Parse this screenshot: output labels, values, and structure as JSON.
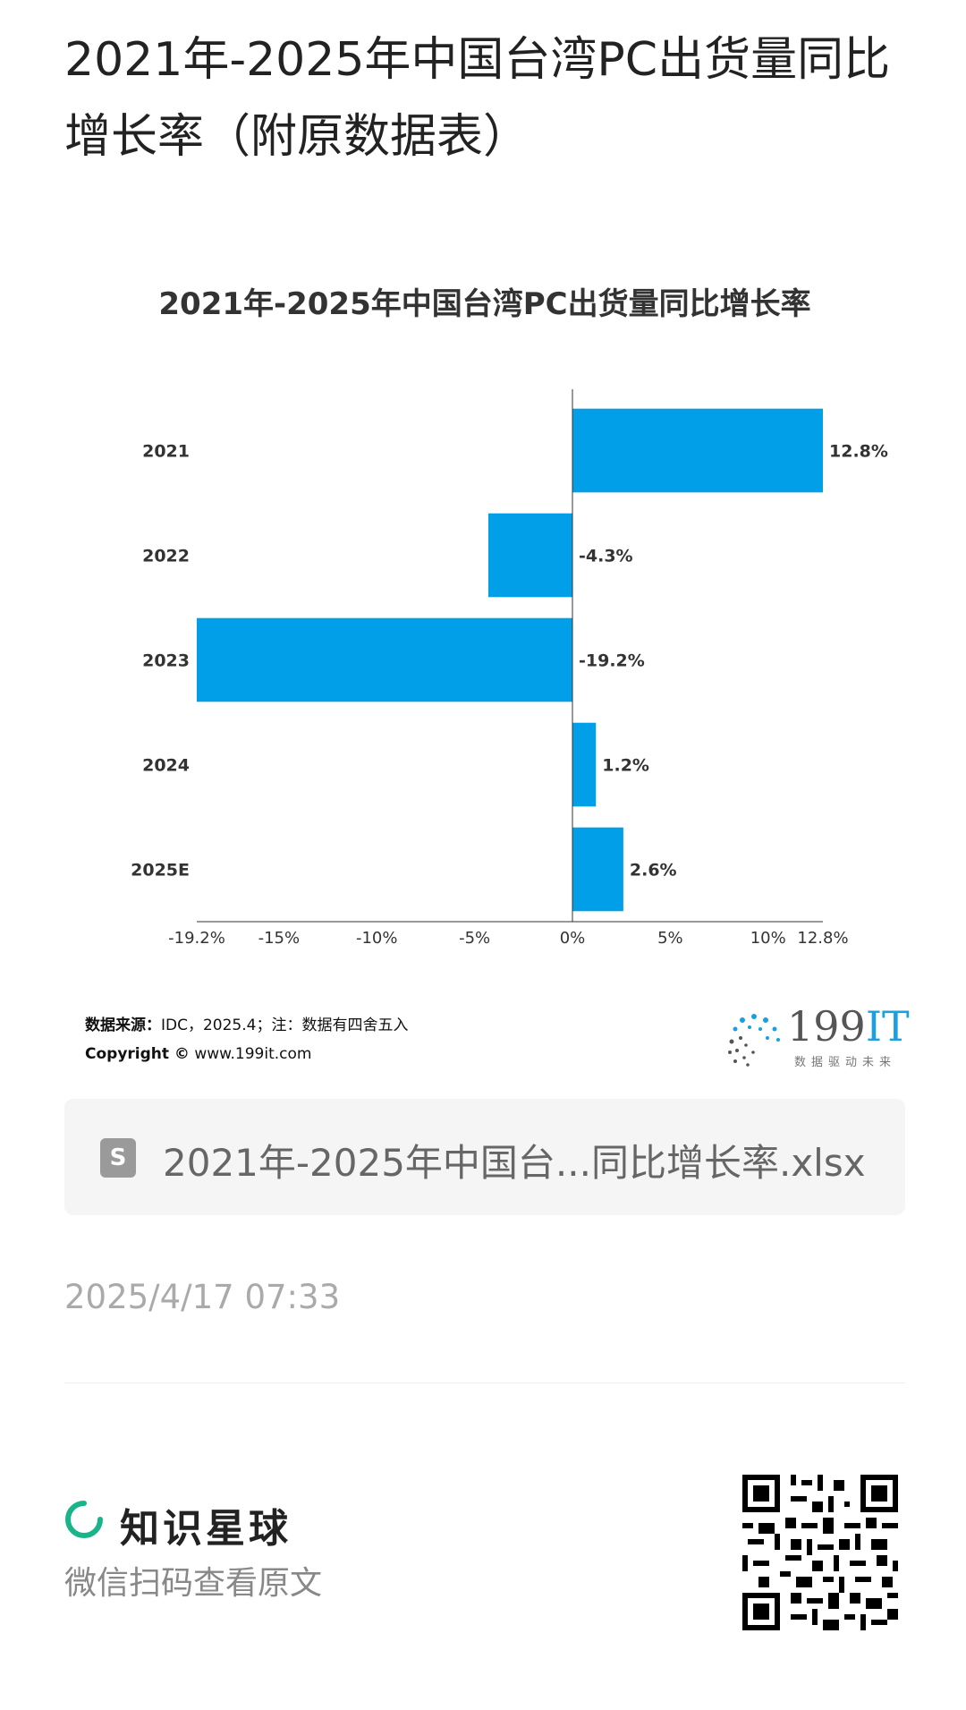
{
  "page": {
    "title": "2021年-2025年中国台湾PC出货量同比增长率（附原数据表）"
  },
  "chart_data": {
    "type": "bar",
    "orientation": "horizontal",
    "title": "2021年-2025年中国台湾PC出货量同比增长率",
    "categories": [
      "2021",
      "2022",
      "2023",
      "2024",
      "2025E"
    ],
    "values": [
      12.8,
      -4.3,
      -19.2,
      1.2,
      2.6
    ],
    "value_labels": [
      "12.8%",
      "-4.3%",
      "-19.2%",
      "1.2%",
      "2.6%"
    ],
    "xlim": [
      -19.2,
      12.8
    ],
    "x_ticks": [
      -19.2,
      -15,
      -10,
      -5,
      0,
      5,
      10,
      12.8
    ],
    "x_tick_labels": [
      "-19.2%",
      "-15%",
      "-10%",
      "-5%",
      "0%",
      "5%",
      "10%",
      "12.8%"
    ],
    "xlabel": "",
    "ylabel": "",
    "grid": false,
    "bar_color": "#009fe8"
  },
  "source": {
    "label": "数据来源：",
    "text": "IDC，2025.4；注：数据有四舍五入",
    "copyright_label": "Copyright ©",
    "copyright_url": "www.199it.com"
  },
  "brand": {
    "name_num": "199",
    "name_it": "IT",
    "slogan": "数据驱动未来"
  },
  "file": {
    "icon_letter": "S",
    "name": "2021年-2025年中国台...同比增长率.xlsx"
  },
  "timestamp": "2025/4/17 07:33",
  "footer": {
    "app_name": "知识星球",
    "subtitle": "微信扫码查看原文",
    "accent_color": "#18b48a"
  }
}
